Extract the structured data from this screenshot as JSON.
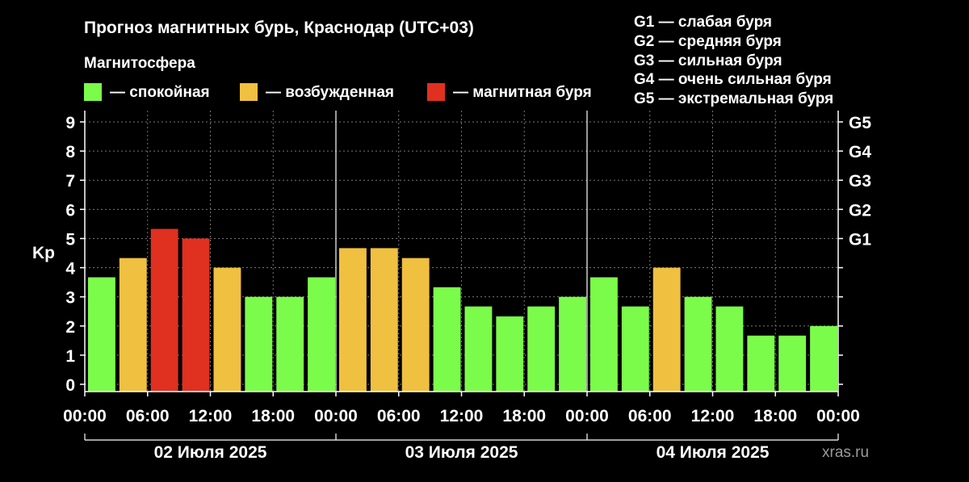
{
  "title": "Прогноз магнитных бурь, Краснодар (UTC+03)",
  "subtitle": "Магнитосфера",
  "legend": [
    {
      "label": "— спокойная",
      "color": "#7cfc4a"
    },
    {
      "label": "— возбужденная",
      "color": "#f0c040"
    },
    {
      "label": "— магнитная буря",
      "color": "#e03020"
    }
  ],
  "storm_legend": [
    "G1 — слабая буря",
    "G2 — средняя буря",
    "G3 — сильная буря",
    "G4 — очень сильная буря",
    "G5 — экстремальная буря"
  ],
  "watermark": "xras.ru",
  "colors": {
    "quiet": "#7cfc4a",
    "active": "#f0c040",
    "storm": "#e03020",
    "grid": "#777777",
    "axis": "#ffffff",
    "background": "#000000"
  },
  "chart_data": {
    "type": "bar",
    "ylabel": "Kp",
    "ylim": [
      0,
      9
    ],
    "yticks": [
      "0",
      "1",
      "2",
      "3",
      "4",
      "5",
      "6",
      "7",
      "8",
      "9"
    ],
    "g_ticks": [
      {
        "label": "G1",
        "kp": 5
      },
      {
        "label": "G2",
        "kp": 6
      },
      {
        "label": "G3",
        "kp": 7
      },
      {
        "label": "G4",
        "kp": 8
      },
      {
        "label": "G5",
        "kp": 9
      }
    ],
    "xticks": [
      "00:00",
      "06:00",
      "12:00",
      "18:00",
      "00:00",
      "06:00",
      "12:00",
      "18:00",
      "00:00",
      "06:00",
      "12:00",
      "18:00",
      "00:00"
    ],
    "days": [
      "02 Июля 2025",
      "03 Июля 2025",
      "04 Июля 2025"
    ],
    "grid": true,
    "values": [
      3.67,
      4.33,
      5.33,
      5.0,
      4.0,
      3.0,
      3.0,
      3.67,
      4.67,
      4.67,
      4.33,
      3.33,
      2.67,
      2.33,
      2.67,
      3.0,
      3.67,
      2.67,
      4.0,
      3.0,
      2.67,
      1.67,
      1.67,
      2.0
    ],
    "levels": [
      "quiet",
      "active",
      "storm",
      "storm",
      "active",
      "quiet",
      "quiet",
      "quiet",
      "active",
      "active",
      "active",
      "quiet",
      "quiet",
      "quiet",
      "quiet",
      "quiet",
      "quiet",
      "quiet",
      "active",
      "quiet",
      "quiet",
      "quiet",
      "quiet",
      "quiet"
    ]
  }
}
